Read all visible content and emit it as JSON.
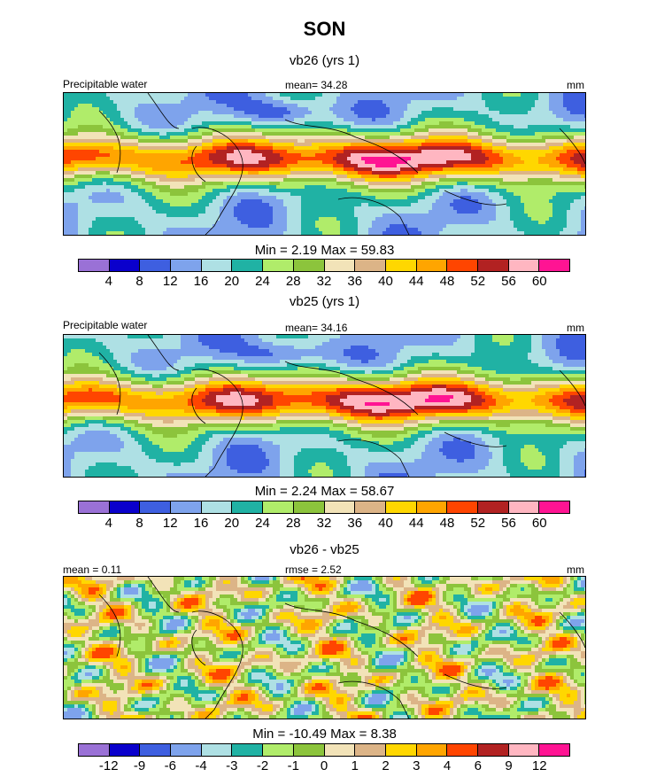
{
  "page_title": "SON",
  "colors": [
    "#9a71d6",
    "#0a00cc",
    "#3e5fe0",
    "#7ea3ec",
    "#aee0e4",
    "#20b2a4",
    "#b0ec6a",
    "#8cc43c",
    "#f2e3b8",
    "#dcb487",
    "#ffd700",
    "#ffa500",
    "#ff4500",
    "#b22222",
    "#ffb6c1",
    "#ff1493"
  ],
  "panels": [
    {
      "title": "vb26 (yrs 1)",
      "left_label": "Precipitable water",
      "center_label": "mean=  34.28",
      "right_label": "mm",
      "minmax": "Min =   2.19 Max =  59.83",
      "ticks": [
        "4",
        "8",
        "12",
        "16",
        "20",
        "24",
        "28",
        "32",
        "36",
        "40",
        "44",
        "48",
        "52",
        "56",
        "60"
      ]
    },
    {
      "title": "vb25 (yrs 1)",
      "left_label": "Precipitable water",
      "center_label": "mean=  34.16",
      "right_label": "mm",
      "minmax": "Min =   2.24 Max =  58.67",
      "ticks": [
        "4",
        "8",
        "12",
        "16",
        "20",
        "24",
        "28",
        "32",
        "36",
        "40",
        "44",
        "48",
        "52",
        "56",
        "60"
      ]
    },
    {
      "title": "vb26 - vb25",
      "left_label": "mean =   0.11",
      "center_label": "rmse =   2.52",
      "right_label": "mm",
      "minmax": "Min = -10.49 Max =   8.38",
      "ticks": [
        "-12",
        "-9",
        "-6",
        "-4",
        "-3",
        "-2",
        "-1",
        "0",
        "1",
        "2",
        "3",
        "4",
        "6",
        "9",
        "12"
      ]
    }
  ],
  "chart_data": [
    {
      "type": "heatmap",
      "title": "vb26 (yrs 1)",
      "variable": "Precipitable water",
      "units": "mm",
      "mean": 34.28,
      "min": 2.19,
      "max": 59.83,
      "contour_levels": [
        4,
        8,
        12,
        16,
        20,
        24,
        28,
        32,
        36,
        40,
        44,
        48,
        52,
        56,
        60
      ]
    },
    {
      "type": "heatmap",
      "title": "vb25 (yrs 1)",
      "variable": "Precipitable water",
      "units": "mm",
      "mean": 34.16,
      "min": 2.24,
      "max": 58.67,
      "contour_levels": [
        4,
        8,
        12,
        16,
        20,
        24,
        28,
        32,
        36,
        40,
        44,
        48,
        52,
        56,
        60
      ]
    },
    {
      "type": "heatmap",
      "title": "vb26 - vb25",
      "units": "mm",
      "mean": 0.11,
      "rmse": 2.52,
      "min": -10.49,
      "max": 8.38,
      "contour_levels": [
        -12,
        -9,
        -6,
        -4,
        -3,
        -2,
        -1,
        0,
        1,
        2,
        3,
        4,
        6,
        9,
        12
      ]
    }
  ]
}
